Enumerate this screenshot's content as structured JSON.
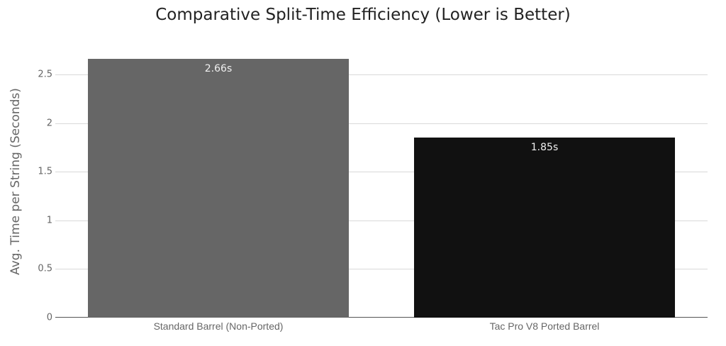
{
  "chart_data": {
    "type": "bar",
    "title": "Comparative Split-Time Efficiency (Lower is Better)",
    "xlabel": "",
    "ylabel": "Avg. Time per String (Seconds)",
    "categories": [
      "Standard Barrel (Non-Ported)",
      "Tac Pro V8 Ported Barrel"
    ],
    "values": [
      2.66,
      1.85
    ],
    "data_labels": [
      "2.66s",
      "1.85s"
    ],
    "colors": [
      "#666666",
      "#111111"
    ],
    "ylim": [
      0,
      2.66
    ],
    "yticks": [
      0,
      0.5,
      1,
      1.5,
      2,
      2.5
    ],
    "ytick_labels": [
      "0",
      "0.5",
      "1",
      "1.5",
      "2",
      "2.5"
    ],
    "grid": true,
    "legend": "none"
  }
}
